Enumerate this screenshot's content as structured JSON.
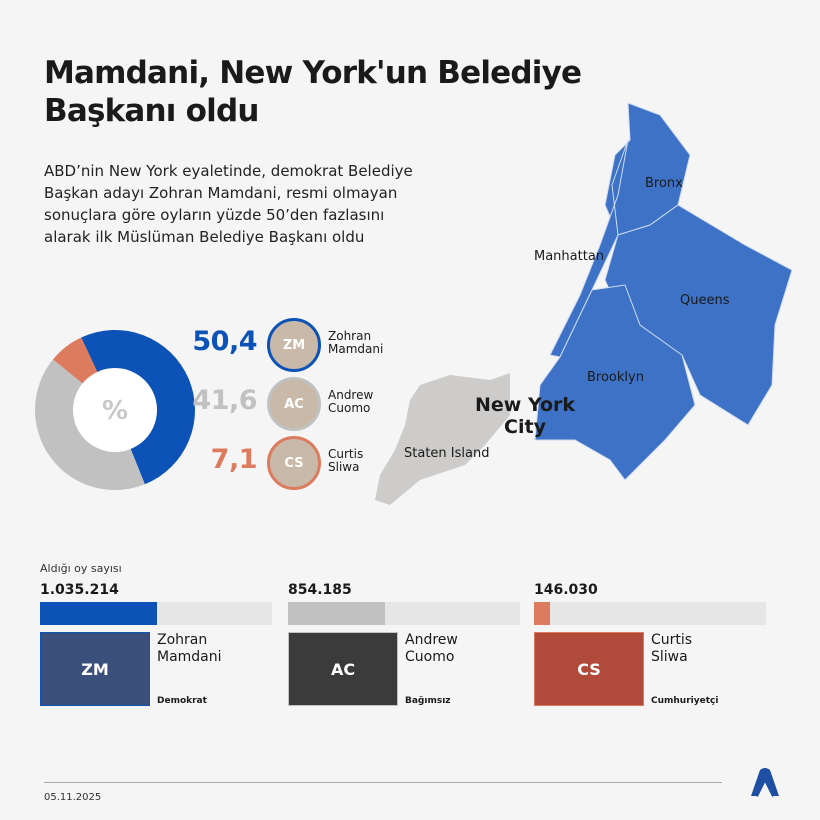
{
  "header": {
    "title": "Mamdani, New York'un Belediye Başkanı oldu",
    "description": "ABD’nin New York eyaletinde, demokrat Belediye Başkan adayı Zohran Mamdani, resmi olmayan sonuçlara göre oyların yüzde 50’den fazlasını alarak ilk Müslüman Belediye Başkanı oldu"
  },
  "chart_data": [
    {
      "type": "pie",
      "center_label": "%",
      "categories": [
        "Zohran Mamdani",
        "Andrew Cuomo",
        "Curtis Sliwa"
      ],
      "values": [
        50.4,
        41.6,
        7.1
      ],
      "value_labels": [
        "50,4",
        "41,6",
        "7,1"
      ],
      "colors": [
        "#0d52b7",
        "#c1c1c1",
        "#dd7b5e"
      ]
    },
    {
      "type": "bar",
      "title": "Aldığı oy sayısı",
      "categories": [
        "Zohran Mamdani",
        "Andrew Cuomo",
        "Curtis Sliwa"
      ],
      "values": [
        1035214,
        854185,
        146030
      ],
      "value_labels": [
        "1.035.214",
        "854.185",
        "146.030"
      ],
      "colors": [
        "#0d52b7",
        "#c1c1c1",
        "#dd7b5e"
      ]
    }
  ],
  "candidates": [
    {
      "first": "Zohran",
      "last": "Mamdani",
      "pct": "50,4",
      "votes": "1.035.214",
      "party": "Demokrat",
      "color": "#0d52b7",
      "initials": "ZM"
    },
    {
      "first": "Andrew",
      "last": "Cuomo",
      "pct": "41,6",
      "votes": "854.185",
      "party": "Bağımsız",
      "color": "#c1c1c1",
      "initials": "AC"
    },
    {
      "first": "Curtis",
      "last": "Sliwa",
      "pct": "7,1",
      "votes": "146.030",
      "party": "Cumhuriyetçi",
      "color": "#dd7b5e",
      "initials": "CS"
    }
  ],
  "map": {
    "city": "New York City",
    "boroughs": [
      "Bronx",
      "Manhattan",
      "Queens",
      "Brooklyn",
      "Staten Island"
    ],
    "fill_blue": "#3d72c6",
    "fill_gray": "#cdccca"
  },
  "votes_label": "Aldığı oy sayısı",
  "footer": {
    "date": "05.11.2025",
    "logo": "AA"
  }
}
